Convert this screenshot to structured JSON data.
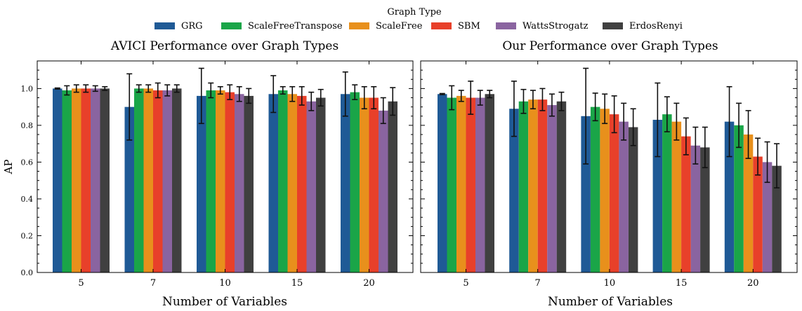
{
  "legend": {
    "title": "Graph Type",
    "entries": [
      {
        "name": "GRG",
        "color": "#1f5a96"
      },
      {
        "name": "ScaleFreeTranspose",
        "color": "#1aa548"
      },
      {
        "name": "ScaleFree",
        "color": "#e8901c"
      },
      {
        "name": "SBM",
        "color": "#e8402a"
      },
      {
        "name": "WattsStrogatz",
        "color": "#8a64a0"
      },
      {
        "name": "ErdosRenyi",
        "color": "#404040"
      }
    ]
  },
  "chart_data": [
    {
      "type": "bar",
      "title": "AVICI Performance over Graph Types",
      "xlabel": "Number of Variables",
      "ylabel": "AP",
      "ylim": [
        0,
        1.15
      ],
      "yticks": [
        "0.0",
        "0.2",
        "0.4",
        "0.6",
        "0.8",
        "1.0"
      ],
      "categories": [
        "5",
        "7",
        "10",
        "15",
        "20"
      ],
      "series": [
        {
          "name": "GRG",
          "values": [
            1.0,
            0.9,
            0.96,
            0.97,
            0.97
          ],
          "errors": [
            0.003,
            0.18,
            0.15,
            0.1,
            0.12
          ]
        },
        {
          "name": "ScaleFreeTranspose",
          "values": [
            0.99,
            1.0,
            0.99,
            0.99,
            0.98
          ],
          "errors": [
            0.025,
            0.02,
            0.04,
            0.02,
            0.04
          ]
        },
        {
          "name": "ScaleFree",
          "values": [
            1.0,
            1.0,
            0.99,
            0.97,
            0.95
          ],
          "errors": [
            0.02,
            0.02,
            0.02,
            0.04,
            0.06
          ]
        },
        {
          "name": "SBM",
          "values": [
            1.0,
            0.99,
            0.98,
            0.96,
            0.95
          ],
          "errors": [
            0.02,
            0.04,
            0.04,
            0.05,
            0.06
          ]
        },
        {
          "name": "WattsStrogatz",
          "values": [
            1.0,
            0.99,
            0.97,
            0.93,
            0.88
          ],
          "errors": [
            0.015,
            0.03,
            0.04,
            0.05,
            0.07
          ]
        },
        {
          "name": "ErdosRenyi",
          "values": [
            1.0,
            1.0,
            0.96,
            0.95,
            0.93
          ],
          "errors": [
            0.01,
            0.02,
            0.04,
            0.045,
            0.075
          ]
        }
      ]
    },
    {
      "type": "bar",
      "title": "Our Performance over Graph Types",
      "xlabel": "Number of Variables",
      "ylabel": "",
      "ylim": [
        0,
        1.15
      ],
      "yticks": [],
      "categories": [
        "5",
        "7",
        "10",
        "15",
        "20"
      ],
      "series": [
        {
          "name": "GRG",
          "values": [
            0.97,
            0.89,
            0.85,
            0.83,
            0.82
          ],
          "errors": [
            0.003,
            0.15,
            0.26,
            0.2,
            0.19
          ]
        },
        {
          "name": "ScaleFreeTranspose",
          "values": [
            0.95,
            0.93,
            0.9,
            0.86,
            0.8
          ],
          "errors": [
            0.065,
            0.065,
            0.075,
            0.095,
            0.12
          ]
        },
        {
          "name": "ScaleFree",
          "values": [
            0.96,
            0.94,
            0.89,
            0.82,
            0.75
          ],
          "errors": [
            0.03,
            0.05,
            0.08,
            0.1,
            0.13
          ]
        },
        {
          "name": "SBM",
          "values": [
            0.95,
            0.94,
            0.86,
            0.74,
            0.63
          ],
          "errors": [
            0.09,
            0.06,
            0.1,
            0.1,
            0.1
          ]
        },
        {
          "name": "WattsStrogatz",
          "values": [
            0.95,
            0.91,
            0.82,
            0.69,
            0.6
          ],
          "errors": [
            0.04,
            0.06,
            0.1,
            0.1,
            0.11
          ]
        },
        {
          "name": "ErdosRenyi",
          "values": [
            0.97,
            0.93,
            0.79,
            0.68,
            0.58
          ],
          "errors": [
            0.02,
            0.05,
            0.1,
            0.11,
            0.12
          ]
        }
      ]
    }
  ]
}
